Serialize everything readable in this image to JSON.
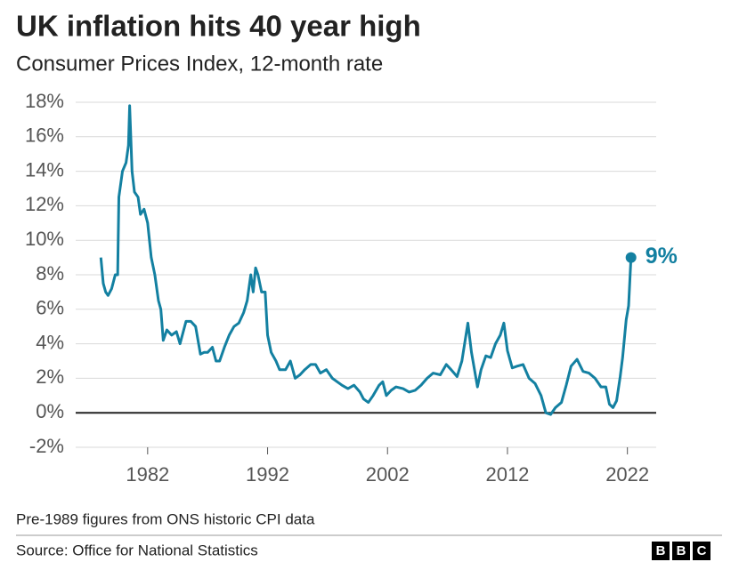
{
  "chart_data": {
    "type": "line",
    "title": "UK inflation hits 40 year high",
    "subtitle": "Consumer Prices Index, 12-month rate",
    "note": "Pre-1989 figures from ONS historic CPI data",
    "source": "Source: Office for National Statistics",
    "logo": [
      "B",
      "B",
      "C"
    ],
    "color": "#1380a1",
    "grid": true,
    "xlim": [
      1976,
      2024.4
    ],
    "xticks": [
      1982,
      1992,
      2002,
      2012,
      2022
    ],
    "ylim": [
      -2,
      18
    ],
    "yticks": [
      {
        "value": -2,
        "label": "-2%"
      },
      {
        "value": 0,
        "label": "0%"
      },
      {
        "value": 2,
        "label": "2%"
      },
      {
        "value": 4,
        "label": "4%"
      },
      {
        "value": 6,
        "label": "6%"
      },
      {
        "value": 8,
        "label": "8%"
      },
      {
        "value": 10,
        "label": "10%"
      },
      {
        "value": 12,
        "label": "12%"
      },
      {
        "value": 14,
        "label": "14%"
      },
      {
        "value": 16,
        "label": "16%"
      },
      {
        "value": 18,
        "label": "18%"
      }
    ],
    "x": [
      1978.1,
      1978.3,
      1978.5,
      1978.7,
      1979.0,
      1979.3,
      1979.5,
      1979.6,
      1979.9,
      1980.2,
      1980.4,
      1980.5,
      1980.7,
      1980.9,
      1981.2,
      1981.4,
      1981.7,
      1982.0,
      1982.3,
      1982.6,
      1982.9,
      1983.1,
      1983.3,
      1983.6,
      1984.0,
      1984.4,
      1984.7,
      1985.2,
      1985.6,
      1986.0,
      1986.4,
      1986.7,
      1987.0,
      1987.4,
      1987.7,
      1988.0,
      1988.4,
      1988.8,
      1989.2,
      1989.6,
      1990.0,
      1990.3,
      1990.6,
      1990.8,
      1991.0,
      1991.2,
      1991.5,
      1991.8,
      1992.0,
      1992.3,
      1992.7,
      1993.0,
      1993.5,
      1993.9,
      1994.3,
      1994.7,
      1995.1,
      1995.6,
      1996.0,
      1996.4,
      1996.9,
      1997.4,
      1997.8,
      1998.2,
      1998.7,
      1999.2,
      1999.7,
      2000.0,
      2000.4,
      2000.8,
      2001.3,
      2001.6,
      2001.9,
      2002.3,
      2002.7,
      2003.3,
      2003.8,
      2004.3,
      2004.8,
      2005.3,
      2005.8,
      2006.4,
      2006.9,
      2007.3,
      2007.8,
      2008.2,
      2008.7,
      2009.0,
      2009.5,
      2009.8,
      2010.2,
      2010.6,
      2011.0,
      2011.4,
      2011.7,
      2012.0,
      2012.4,
      2012.8,
      2013.3,
      2013.8,
      2014.3,
      2014.8,
      2015.2,
      2015.6,
      2016.0,
      2016.5,
      2016.9,
      2017.3,
      2017.8,
      2018.3,
      2018.8,
      2019.3,
      2019.8,
      2020.2,
      2020.5,
      2020.8,
      2021.1,
      2021.4,
      2021.6,
      2021.9,
      2022.1,
      2022.3
    ],
    "values": [
      9.0,
      7.5,
      7.0,
      6.8,
      7.2,
      8.0,
      8.0,
      12.5,
      14.0,
      14.5,
      15.5,
      17.8,
      14.0,
      12.8,
      12.5,
      11.5,
      11.8,
      11.0,
      9.0,
      8.0,
      6.5,
      6.0,
      4.2,
      4.8,
      4.5,
      4.7,
      4.0,
      5.3,
      5.3,
      5.0,
      3.4,
      3.5,
      3.5,
      3.8,
      3.0,
      3.0,
      3.8,
      4.5,
      5.0,
      5.2,
      5.8,
      6.5,
      8.0,
      7.0,
      8.4,
      8.0,
      7.0,
      7.0,
      4.5,
      3.5,
      3.0,
      2.5,
      2.5,
      3.0,
      2.0,
      2.2,
      2.5,
      2.8,
      2.8,
      2.3,
      2.5,
      2.0,
      1.8,
      1.6,
      1.4,
      1.6,
      1.2,
      0.8,
      0.6,
      1.0,
      1.6,
      1.8,
      1.0,
      1.3,
      1.5,
      1.4,
      1.2,
      1.3,
      1.6,
      2.0,
      2.3,
      2.2,
      2.8,
      2.5,
      2.1,
      3.0,
      5.2,
      3.5,
      1.5,
      2.5,
      3.3,
      3.2,
      4.0,
      4.5,
      5.2,
      3.6,
      2.6,
      2.7,
      2.8,
      2.0,
      1.7,
      1.0,
      0.0,
      -0.1,
      0.3,
      0.6,
      1.6,
      2.7,
      3.1,
      2.4,
      2.3,
      2.0,
      1.5,
      1.5,
      0.5,
      0.3,
      0.7,
      2.1,
      3.2,
      5.4,
      6.2,
      9.0
    ],
    "value_labels": [
      null,
      null,
      null,
      null,
      null,
      null,
      null,
      null,
      null,
      null,
      null,
      null,
      null,
      null,
      null,
      null,
      null,
      null,
      null,
      null,
      null,
      null,
      null,
      null,
      null,
      null,
      null,
      null,
      null,
      null,
      null,
      null,
      null,
      null,
      null,
      null,
      null,
      null,
      null,
      null,
      null,
      null,
      null,
      null,
      null,
      null,
      null,
      null,
      null,
      null,
      null,
      null,
      null,
      null,
      null,
      null,
      null,
      null,
      null,
      null,
      null,
      null,
      null,
      null,
      null,
      null,
      null,
      null,
      null,
      null,
      null,
      null,
      null,
      null,
      null,
      null,
      null,
      null,
      null,
      null,
      null,
      null,
      null,
      null,
      null,
      null,
      null,
      null,
      null,
      null,
      null,
      null,
      null,
      null,
      null,
      null,
      null,
      null,
      null,
      null,
      null,
      null,
      null,
      null,
      null,
      null,
      null,
      null,
      null,
      null,
      null,
      null,
      null,
      null,
      null,
      null,
      null,
      null,
      null,
      null,
      null,
      "9%"
    ]
  }
}
